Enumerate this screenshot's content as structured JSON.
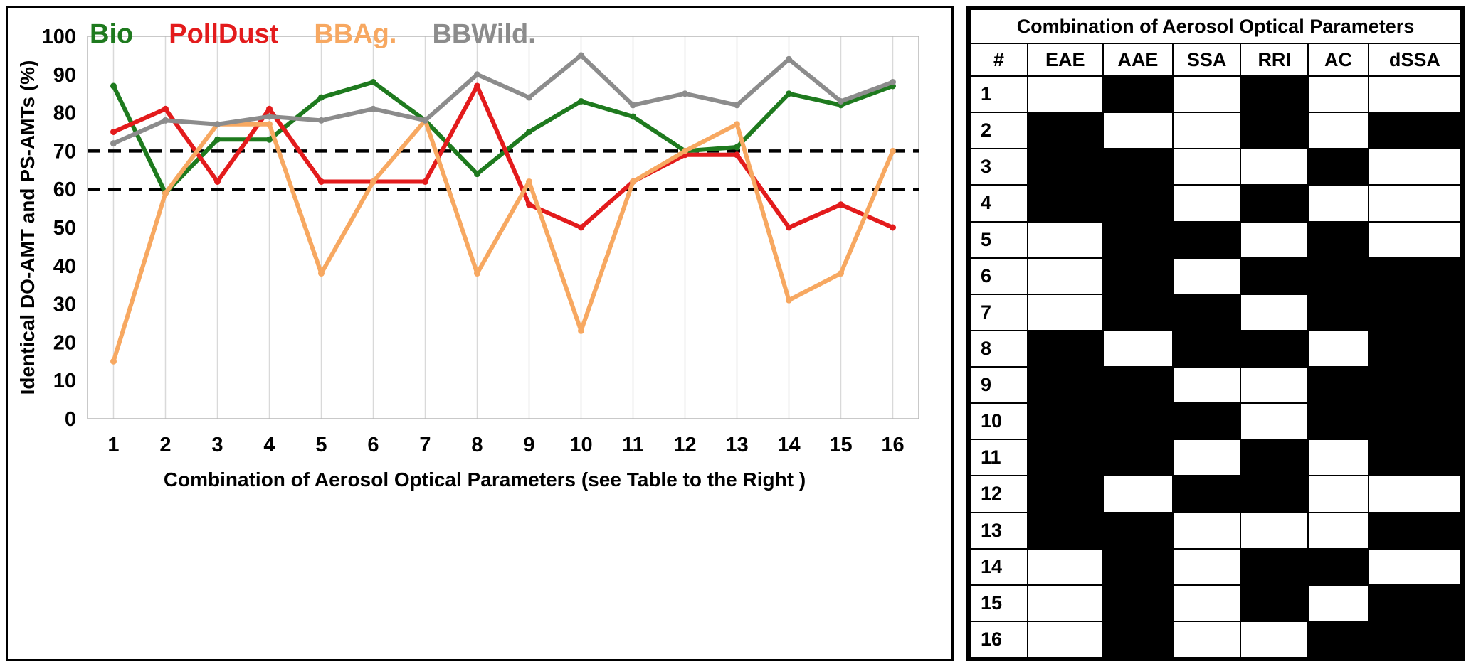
{
  "chart_data": {
    "type": "line",
    "xlabel": "Combination of Aerosol Optical Parameters (see Table to the Right )",
    "ylabel": "Identical DO-AMT and PS-AMTs (%)",
    "x": [
      "1",
      "2",
      "3",
      "4",
      "5",
      "6",
      "7",
      "8",
      "9",
      "10",
      "11",
      "12",
      "13",
      "14",
      "15",
      "16"
    ],
    "ylim": [
      0,
      100
    ],
    "ytick_step": 10,
    "grid": "vertical-only",
    "legend_position": "top-inside",
    "reference_lines": [
      {
        "y": 70,
        "color": "#000000",
        "style": "dashed"
      },
      {
        "y": 60,
        "color": "#000000",
        "style": "dashed"
      }
    ],
    "series": [
      {
        "name": "Bio",
        "color": "#1e7a1e",
        "values": [
          87,
          59,
          73,
          73,
          84,
          88,
          78,
          64,
          75,
          83,
          79,
          70,
          71,
          85,
          82,
          87
        ]
      },
      {
        "name": "PollDust",
        "color": "#e31b1c",
        "values": [
          75,
          81,
          62,
          81,
          62,
          62,
          62,
          87,
          56,
          50,
          62,
          69,
          69,
          50,
          56,
          50
        ]
      },
      {
        "name": "BBAg.",
        "color": "#f7a861",
        "values": [
          15,
          59,
          77,
          77,
          38,
          62,
          78,
          38,
          62,
          23,
          62,
          70,
          77,
          31,
          38,
          70
        ]
      },
      {
        "name": "BBWild.",
        "color": "#8c8c8c",
        "values": [
          72,
          78,
          77,
          79,
          78,
          81,
          78,
          90,
          84,
          95,
          82,
          85,
          82,
          94,
          83,
          88
        ]
      }
    ]
  },
  "right_panel": {
    "title": "Combination of Aerosol Optical Parameters",
    "columns": [
      "#",
      "EAE",
      "AAE",
      "SSA",
      "RRI",
      "AC",
      "dSSA"
    ],
    "fill_legend": {
      "filled_means": "parameter included",
      "filled_color": "#000000",
      "empty_color": "#ffffff"
    },
    "rows": [
      {
        "n": "1",
        "cells": [
          0,
          1,
          0,
          1,
          0,
          0
        ]
      },
      {
        "n": "2",
        "cells": [
          1,
          0,
          0,
          1,
          0,
          1
        ]
      },
      {
        "n": "3",
        "cells": [
          1,
          1,
          0,
          0,
          1,
          0
        ]
      },
      {
        "n": "4",
        "cells": [
          1,
          1,
          0,
          1,
          0,
          0
        ]
      },
      {
        "n": "5",
        "cells": [
          0,
          1,
          1,
          0,
          1,
          0
        ]
      },
      {
        "n": "6",
        "cells": [
          0,
          1,
          0,
          1,
          1,
          1
        ]
      },
      {
        "n": "7",
        "cells": [
          0,
          1,
          1,
          0,
          1,
          1
        ]
      },
      {
        "n": "8",
        "cells": [
          1,
          0,
          1,
          1,
          0,
          1
        ]
      },
      {
        "n": "9",
        "cells": [
          1,
          1,
          0,
          0,
          1,
          1
        ]
      },
      {
        "n": "10",
        "cells": [
          1,
          1,
          1,
          0,
          1,
          1
        ]
      },
      {
        "n": "11",
        "cells": [
          1,
          1,
          0,
          1,
          0,
          1
        ]
      },
      {
        "n": "12",
        "cells": [
          1,
          0,
          1,
          1,
          0,
          0
        ]
      },
      {
        "n": "13",
        "cells": [
          1,
          1,
          0,
          0,
          0,
          1
        ]
      },
      {
        "n": "14",
        "cells": [
          0,
          1,
          0,
          1,
          1,
          0
        ]
      },
      {
        "n": "15",
        "cells": [
          0,
          1,
          0,
          1,
          0,
          1
        ]
      },
      {
        "n": "16",
        "cells": [
          0,
          1,
          0,
          0,
          1,
          1
        ]
      }
    ]
  }
}
